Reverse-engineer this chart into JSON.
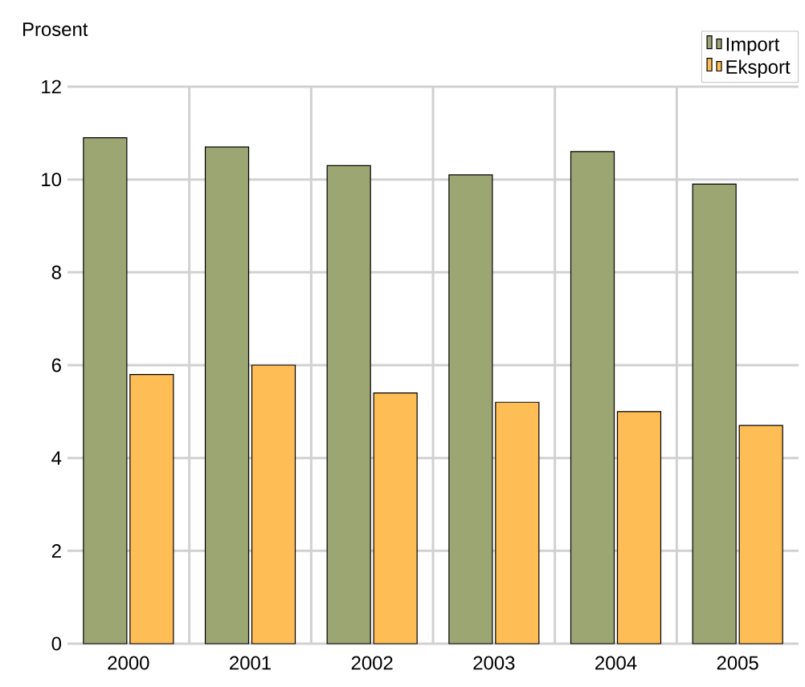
{
  "chart_data": {
    "type": "bar",
    "ylabel": "Prosent",
    "categories": [
      "2000",
      "2001",
      "2002",
      "2003",
      "2004",
      "2005"
    ],
    "series": [
      {
        "name": "Import",
        "color": "#9ca673",
        "values": [
          10.9,
          10.7,
          10.3,
          10.1,
          10.6,
          9.9
        ]
      },
      {
        "name": "Eksport",
        "color": "#ffbe55",
        "values": [
          5.8,
          6.0,
          5.4,
          5.2,
          5.0,
          4.7
        ]
      }
    ],
    "ylim": [
      0,
      12
    ],
    "yticks": [
      0,
      2,
      4,
      6,
      8,
      10,
      12
    ],
    "grid": true,
    "legend": "top right"
  }
}
